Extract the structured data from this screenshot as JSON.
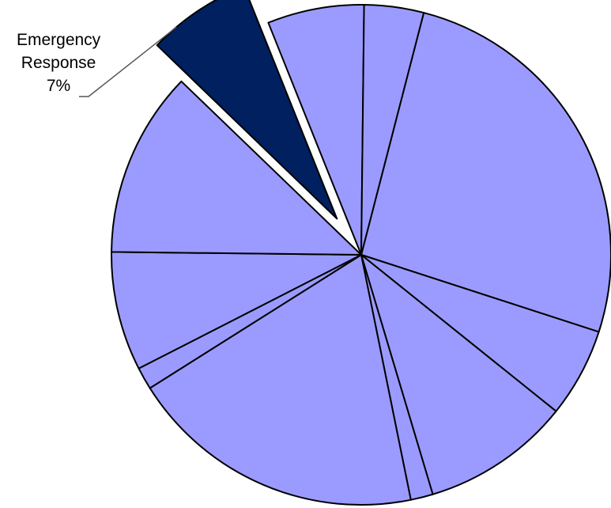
{
  "chart_data": {
    "type": "pie",
    "title": "",
    "slices": [
      {
        "value": 27.0,
        "highlighted": false
      },
      {
        "value": 6.0,
        "highlighted": false
      },
      {
        "value": 10.0,
        "highlighted": false
      },
      {
        "value": 1.5,
        "highlighted": false
      },
      {
        "value": 20.0,
        "highlighted": false
      },
      {
        "value": 1.5,
        "highlighted": false
      },
      {
        "value": 8.0,
        "highlighted": false
      },
      {
        "value": 12.5,
        "highlighted": false
      },
      {
        "value": 7.0,
        "highlighted": true
      },
      {
        "value": 6.5,
        "highlighted": false
      },
      {
        "value": 4.0,
        "highlighted": false
      }
    ],
    "callout": {
      "slice_index": 8,
      "lines": [
        "Emergency",
        "Response",
        "7%"
      ]
    },
    "colors": {
      "slice": "#9b9bff",
      "highlight": "#002060",
      "stroke": "#000000"
    }
  }
}
